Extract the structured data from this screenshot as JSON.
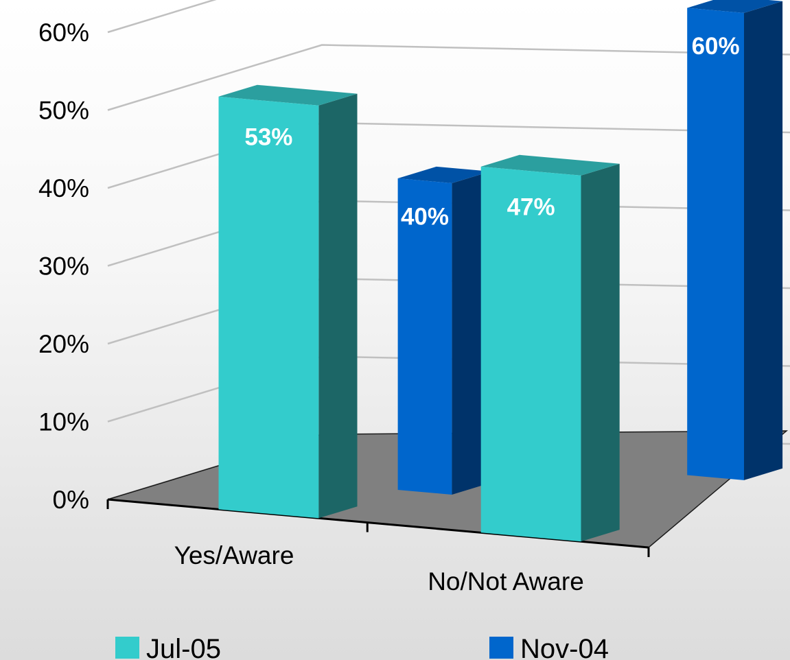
{
  "chart_data": {
    "type": "bar",
    "title": "",
    "xlabel": "",
    "ylabel": "",
    "categories": [
      "Yes/Aware",
      "No/Not Aware"
    ],
    "series": [
      {
        "name": "Jul-05",
        "values": [
          53,
          47
        ],
        "labels": [
          "53%",
          "47%"
        ],
        "color": "#33CCCC"
      },
      {
        "name": "Nov-04",
        "values": [
          40,
          60
        ],
        "labels": [
          "40%",
          "60%"
        ],
        "color": "#0066CC"
      }
    ],
    "ylim": [
      0,
      60
    ],
    "yticks": [
      {
        "value": 0,
        "label": "0%"
      },
      {
        "value": 10,
        "label": "10%"
      },
      {
        "value": 20,
        "label": "20%"
      },
      {
        "value": 30,
        "label": "30%"
      },
      {
        "value": 40,
        "label": "40%"
      },
      {
        "value": 50,
        "label": "50%"
      },
      {
        "value": 60,
        "label": "60%"
      }
    ],
    "grid": true,
    "legend": "bottom",
    "floor_color": "#808080"
  }
}
